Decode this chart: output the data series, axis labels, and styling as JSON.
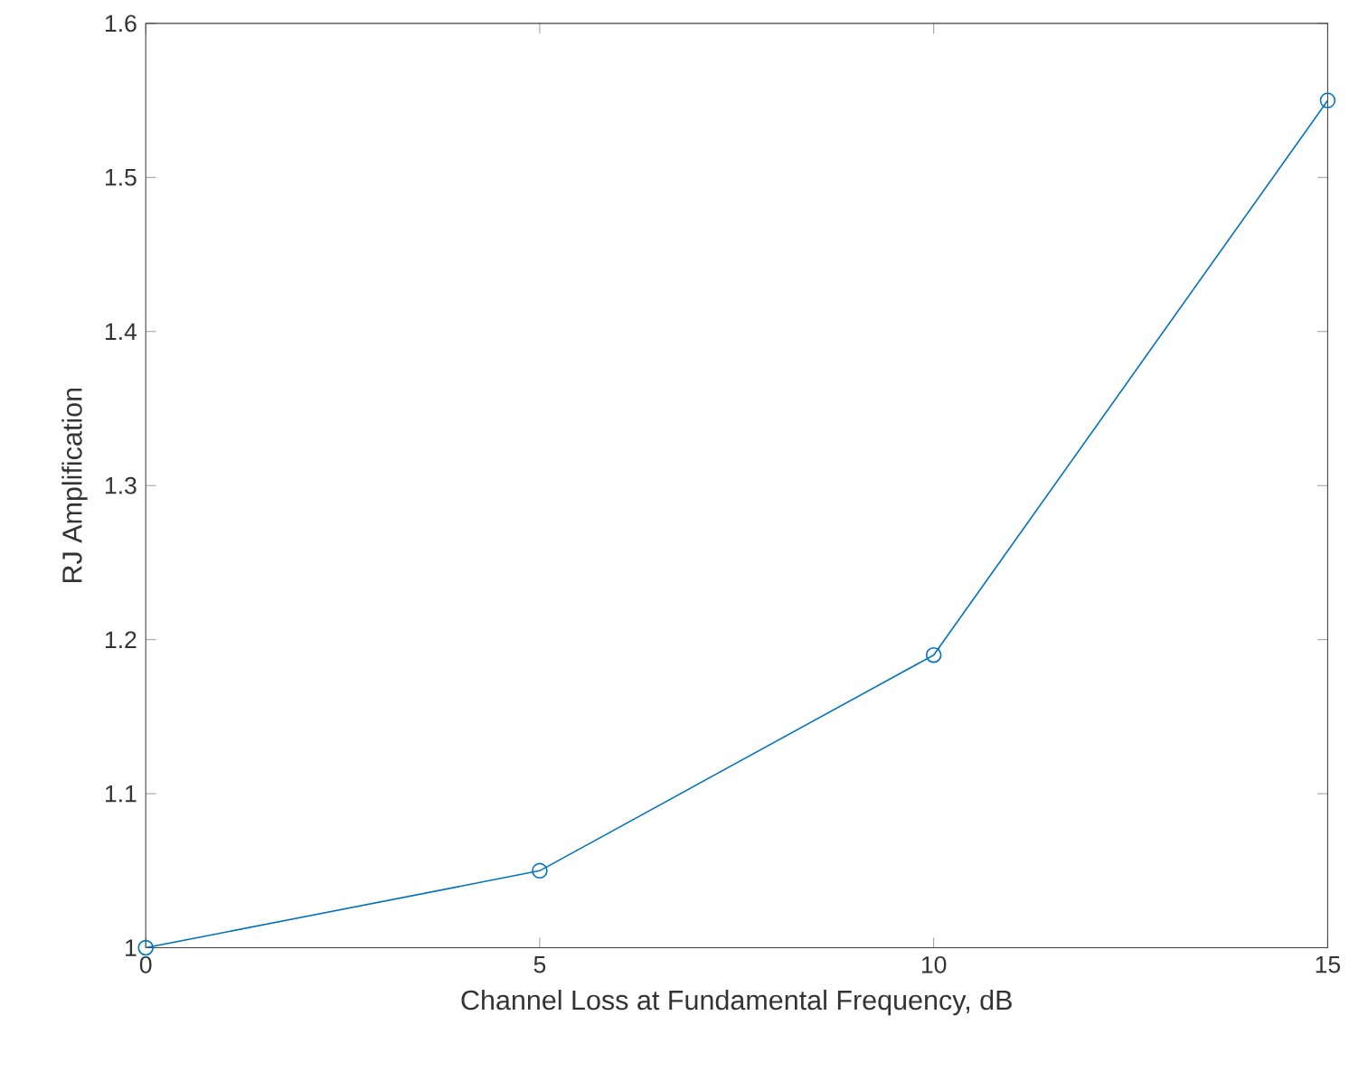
{
  "chart_data": {
    "type": "line",
    "xlabel": "Channel Loss at Fundamental Frequency, dB",
    "ylabel": "RJ Amplification",
    "x": [
      0,
      5,
      10,
      15
    ],
    "series": [
      {
        "color": "#0072bd",
        "values": [
          1.0,
          1.05,
          1.19,
          1.55
        ]
      }
    ],
    "xlim": [
      0,
      15
    ],
    "ylim": [
      1,
      1.6
    ],
    "xticks": [
      0,
      5,
      10,
      15
    ],
    "yticks": [
      1,
      1.1,
      1.2,
      1.3,
      1.4,
      1.5,
      1.6
    ],
    "marker": "circle",
    "line_style": "solid"
  }
}
